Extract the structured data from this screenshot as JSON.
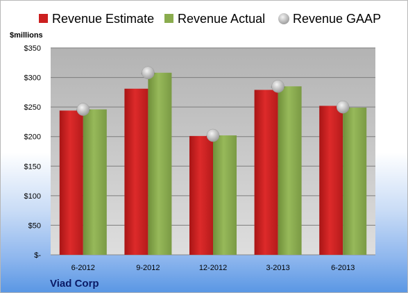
{
  "chart_data": {
    "type": "bar",
    "categories": [
      "6-2012",
      "9-2012",
      "12-2012",
      "3-2013",
      "6-2013"
    ],
    "series": [
      {
        "name": "Revenue Estimate",
        "values": [
          244,
          281,
          201,
          279,
          252
        ],
        "color": "#cc1f1f"
      },
      {
        "name": "Revenue Actual",
        "values": [
          246,
          308,
          202,
          285,
          249
        ],
        "color": "#8aac4e"
      }
    ],
    "markers": {
      "name": "Revenue GAAP",
      "values": [
        246,
        308,
        202,
        285,
        250
      ],
      "color": "#c7c7c7"
    },
    "ylabel": "$millions",
    "ylim": [
      0,
      350
    ],
    "yticks": [
      0,
      50,
      100,
      150,
      200,
      250,
      300,
      350
    ],
    "ytick_labels": [
      "$-",
      "$50",
      "$100",
      "$150",
      "$200",
      "$250",
      "$300",
      "$350"
    ],
    "grid": true,
    "legend_position": "top"
  },
  "company": "Viad Corp"
}
